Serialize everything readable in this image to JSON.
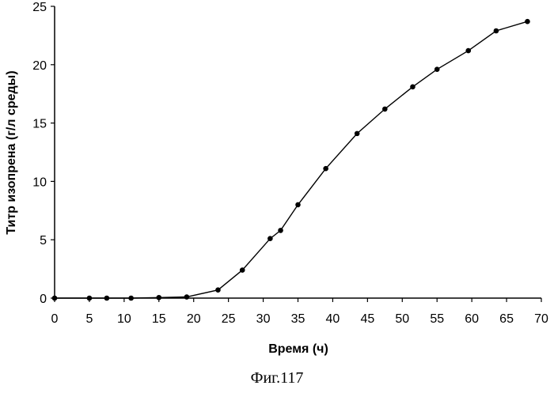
{
  "caption": "Фиг.117",
  "chart_data": {
    "type": "line",
    "title": "",
    "xlabel": "Время (ч)",
    "ylabel": "Титр изопрена (г/л среды)",
    "xlim": [
      0,
      70
    ],
    "ylim": [
      0,
      25
    ],
    "xticks": [
      0,
      5,
      10,
      15,
      20,
      25,
      30,
      35,
      40,
      45,
      50,
      55,
      60,
      65,
      70
    ],
    "yticks": [
      0,
      5,
      10,
      15,
      20,
      25
    ],
    "grid": false,
    "legend": "none",
    "line_color": "#000000",
    "series": [
      {
        "x": [
          0,
          5,
          7.5,
          11,
          15,
          19,
          23.5,
          27,
          31,
          32.5,
          35,
          39,
          43.5,
          47.5,
          51.5,
          55,
          59.5,
          63.5,
          68
        ],
        "y": [
          0,
          0,
          0,
          0,
          0.05,
          0.1,
          0.7,
          2.4,
          5.1,
          5.8,
          8,
          11.1,
          14.1,
          16.2,
          18.1,
          19.6,
          21.2,
          22.9,
          23.7
        ]
      }
    ]
  }
}
